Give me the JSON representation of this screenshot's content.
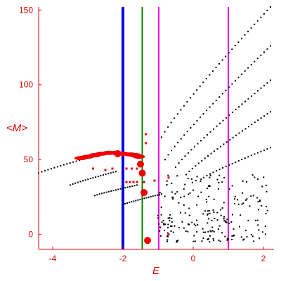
{
  "chart_data": {
    "type": "scatter",
    "title": "",
    "xlabel": "E",
    "ylabel": "<M>",
    "xlim": [
      -4.4,
      2.3
    ],
    "ylim": [
      -10,
      152
    ],
    "grid": false,
    "x_ticks": [
      -4,
      -2,
      0,
      2
    ],
    "y_ticks": [
      0,
      50,
      100,
      150
    ],
    "axis_color": "#dd0000",
    "vertical_lines": [
      {
        "x": -2.0,
        "color": "#0000ee"
      },
      {
        "x": -1.45,
        "color": "#008000"
      },
      {
        "x": -0.98,
        "color": "#ee00ee"
      },
      {
        "x": 1.0,
        "color": "#ee00ee"
      }
    ],
    "series": [
      {
        "color": "#000000",
        "band_curves": [
          {
            "x_start": -4.4,
            "x_end": -2.7,
            "y_start": 41,
            "y_end": 53
          },
          {
            "x_start": -3.5,
            "x_end": -2.2,
            "y_start": 33,
            "y_end": 42
          },
          {
            "x_start": -2.8,
            "x_end": -1.6,
            "y_start": 26,
            "y_end": 33
          },
          {
            "x_start": -2.0,
            "x_end": -0.9,
            "y_start": 20,
            "y_end": 27
          },
          {
            "x_start": -0.9,
            "x_end": 2.2,
            "y_start": 65,
            "y_end": 152
          },
          {
            "x_start": -0.8,
            "x_end": 2.2,
            "y_start": 50,
            "y_end": 126
          },
          {
            "x_start": -0.5,
            "x_end": 2.2,
            "y_start": 45,
            "y_end": 103
          },
          {
            "x_start": -0.2,
            "x_end": 2.2,
            "y_start": 40,
            "y_end": 82
          },
          {
            "x_start": 0.3,
            "x_end": 2.2,
            "y_start": 38,
            "y_end": 58
          }
        ],
        "scatter_region": {
          "x": [
            -1.0,
            2.2
          ],
          "y": [
            -5,
            40
          ]
        }
      },
      {
        "color": "#ee0000",
        "arc": [
          [
            -3.2,
            51
          ],
          [
            -3.0,
            52
          ],
          [
            -2.8,
            53
          ],
          [
            -2.6,
            54
          ],
          [
            -2.4,
            54.5
          ],
          [
            -2.2,
            54.5
          ],
          [
            -2.0,
            54
          ],
          [
            -1.8,
            53.5
          ],
          [
            -1.65,
            53
          ],
          [
            -1.55,
            52
          ]
        ],
        "points": [
          {
            "x": -2.85,
            "y": 44
          },
          {
            "x": -2.5,
            "y": 43
          },
          {
            "x": -2.3,
            "y": 44
          },
          {
            "x": -1.9,
            "y": 44
          },
          {
            "x": -1.75,
            "y": 44
          },
          {
            "x": -1.6,
            "y": 44
          },
          {
            "x": -1.9,
            "y": 35
          },
          {
            "x": -1.8,
            "y": 35
          },
          {
            "x": -1.7,
            "y": 35
          },
          {
            "x": -1.6,
            "y": 35
          },
          {
            "x": -1.4,
            "y": 35
          },
          {
            "x": -1.1,
            "y": 36
          },
          {
            "x": -1.5,
            "y": 47
          },
          {
            "x": -1.4,
            "y": 40
          },
          {
            "x": -1.4,
            "y": 28
          },
          {
            "x": -1.3,
            "y": -4
          },
          {
            "x": -1.35,
            "y": 67
          },
          {
            "x": -1.35,
            "y": 61
          },
          {
            "x": -0.7,
            "y": 38
          },
          {
            "x": -0.7,
            "y": 0
          },
          {
            "x": -2.0,
            "y": 53
          }
        ],
        "large_points": [
          {
            "x": -1.5,
            "y": 47
          },
          {
            "x": -1.45,
            "y": 41
          },
          {
            "x": -1.4,
            "y": 28
          },
          {
            "x": -1.3,
            "y": -4
          },
          {
            "x": -2.15,
            "y": 54
          }
        ]
      }
    ]
  }
}
